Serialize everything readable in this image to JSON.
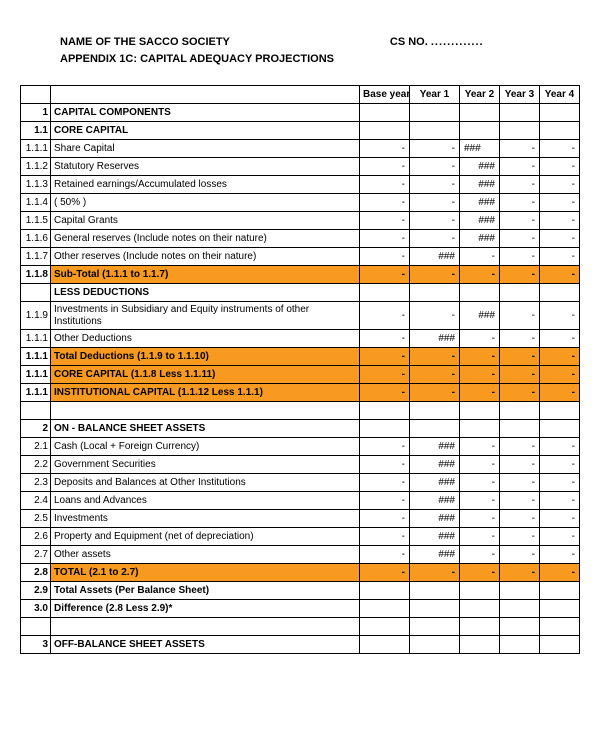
{
  "header": {
    "name": "NAME OF THE SACCO SOCIETY",
    "cs_label": "CS NO.",
    "cs_dots": ".............",
    "appendix": "APPENDIX 1C: CAPITAL ADEQUACY PROJECTIONS"
  },
  "columns": {
    "base": "Base year",
    "y1": "Year 1",
    "y2": "Year 2",
    "y3": "Year 3",
    "y4": "Year 4"
  },
  "rows": [
    {
      "n": "1",
      "label": "CAPITAL COMPONENTS",
      "bold": true,
      "vals": [
        "",
        "",
        "",
        "",
        ""
      ]
    },
    {
      "n": "1.1",
      "label": "CORE CAPITAL",
      "bold": true,
      "vals": [
        "",
        "",
        "",
        "",
        ""
      ]
    },
    {
      "n": "1.1.1",
      "label": "Share Capital",
      "vals": [
        "-",
        "-",
        "###",
        "-",
        "-"
      ],
      "v2align": "l"
    },
    {
      "n": "1.1.2",
      "label": "Statutory Reserves",
      "vals": [
        "-",
        "-",
        "###",
        "-",
        "-"
      ]
    },
    {
      "n": "1.1.3",
      "label": "Retained earnings/Accumulated losses",
      "vals": [
        "-",
        "-",
        "###",
        "-",
        "-"
      ]
    },
    {
      "n": "1.1.4",
      "label": "( 50% )",
      "vals": [
        "-",
        "-",
        "###",
        "-",
        "-"
      ]
    },
    {
      "n": "1.1.5",
      "label": "Capital Grants",
      "vals": [
        "-",
        "-",
        "###",
        "-",
        "-"
      ]
    },
    {
      "n": "1.1.6",
      "label": "General reserves (Include notes on their nature)",
      "vals": [
        "-",
        "-",
        "###",
        "-",
        "-"
      ]
    },
    {
      "n": "1.1.7",
      "label": "Other reserves (Include notes on their nature)",
      "vals": [
        "-",
        "###",
        "-",
        "-",
        "-"
      ]
    },
    {
      "n": "1.1.8",
      "label": "Sub-Total  (1.1.1 to 1.1.7)",
      "bold": true,
      "hl": true,
      "vals": [
        "-",
        "-",
        "-",
        "-",
        "-"
      ]
    },
    {
      "n": "",
      "label": "LESS DEDUCTIONS",
      "bold": true,
      "vals": [
        "",
        "",
        "",
        "",
        ""
      ]
    },
    {
      "n": "1.1.9",
      "label": "Investments in Subsidiary  and Equity instruments of other Institutions",
      "wrap": true,
      "vals": [
        "-",
        "-",
        "###",
        "-",
        "-"
      ]
    },
    {
      "n": "1.1.1",
      "label": "Other Deductions",
      "vals": [
        "-",
        "###",
        "-",
        "-",
        "-"
      ]
    },
    {
      "n": "1.1.1",
      "label": "Total Deductions (1.1.9 to 1.1.10)",
      "bold": true,
      "hl": true,
      "vals": [
        "-",
        "-",
        "-",
        "-",
        "-"
      ]
    },
    {
      "n": "1.1.1",
      "label": "CORE CAPITAL (1.1.8 Less 1.1.11)",
      "bold": true,
      "hl": true,
      "vals": [
        "-",
        "-",
        "-",
        "-",
        "-"
      ]
    },
    {
      "n": "1.1.1",
      "label": "INSTITUTIONAL CAPITAL  (1.1.12 Less 1.1.1)",
      "bold": true,
      "hl": true,
      "vals": [
        "-",
        "-",
        "-",
        "-",
        "-"
      ]
    },
    {
      "n": "",
      "label": "",
      "vals": [
        "",
        "",
        "",
        "",
        ""
      ]
    },
    {
      "n": "2",
      "label": "ON - BALANCE SHEET ASSETS",
      "bold": true,
      "vals": [
        "",
        "",
        "",
        "",
        ""
      ]
    },
    {
      "n": "2.1",
      "label": "  Cash (Local + Foreign Currency)",
      "vals": [
        "-",
        "###",
        "-",
        "-",
        "-"
      ]
    },
    {
      "n": "2.2",
      "label": "  Government Securities",
      "vals": [
        "-",
        "###",
        "-",
        "-",
        "-"
      ]
    },
    {
      "n": "2.3",
      "label": "  Deposits and Balances at Other Institutions",
      "vals": [
        "-",
        "###",
        "-",
        "-",
        "-"
      ]
    },
    {
      "n": "2.4",
      "label": "Loans and Advances",
      "vals": [
        "-",
        "###",
        "-",
        "-",
        "-"
      ]
    },
    {
      "n": "2.5",
      "label": "Investments",
      "vals": [
        "-",
        "###",
        "-",
        "-",
        "-"
      ]
    },
    {
      "n": "2.6",
      "label": "Property and Equipment (net of depreciation)",
      "vals": [
        "-",
        "###",
        "-",
        "-",
        "-"
      ]
    },
    {
      "n": "2.7",
      "label": " Other assets",
      "vals": [
        "-",
        "###",
        "-",
        "-",
        "-"
      ]
    },
    {
      "n": "2.8",
      "label": " TOTAL (2.1 to 2.7)",
      "bold": true,
      "hl": true,
      "vals": [
        "-",
        "-",
        "-",
        "-",
        "-"
      ]
    },
    {
      "n": "2.9",
      "label": "Total Assets (Per Balance Sheet)",
      "bold": true,
      "vals": [
        "",
        "",
        "",
        "",
        ""
      ]
    },
    {
      "n": "3.0",
      "label": " Difference (2.8 Less 2.9)*",
      "bold": true,
      "vals": [
        "",
        "",
        "",
        "",
        ""
      ]
    },
    {
      "n": "",
      "label": "",
      "vals": [
        "",
        "",
        "",
        "",
        ""
      ]
    },
    {
      "n": "3",
      "label": "OFF-BALANCE SHEET ASSETS",
      "bold": true,
      "vals": [
        "",
        "",
        "",
        "",
        ""
      ]
    }
  ],
  "colors": {
    "highlight": "#f79a1f",
    "border": "#000000",
    "background": "#ffffff",
    "text": "#000000"
  },
  "typography": {
    "font_family": "Arial",
    "header_fontsize": 11,
    "cell_fontsize": 10,
    "header_weight": "bold"
  }
}
